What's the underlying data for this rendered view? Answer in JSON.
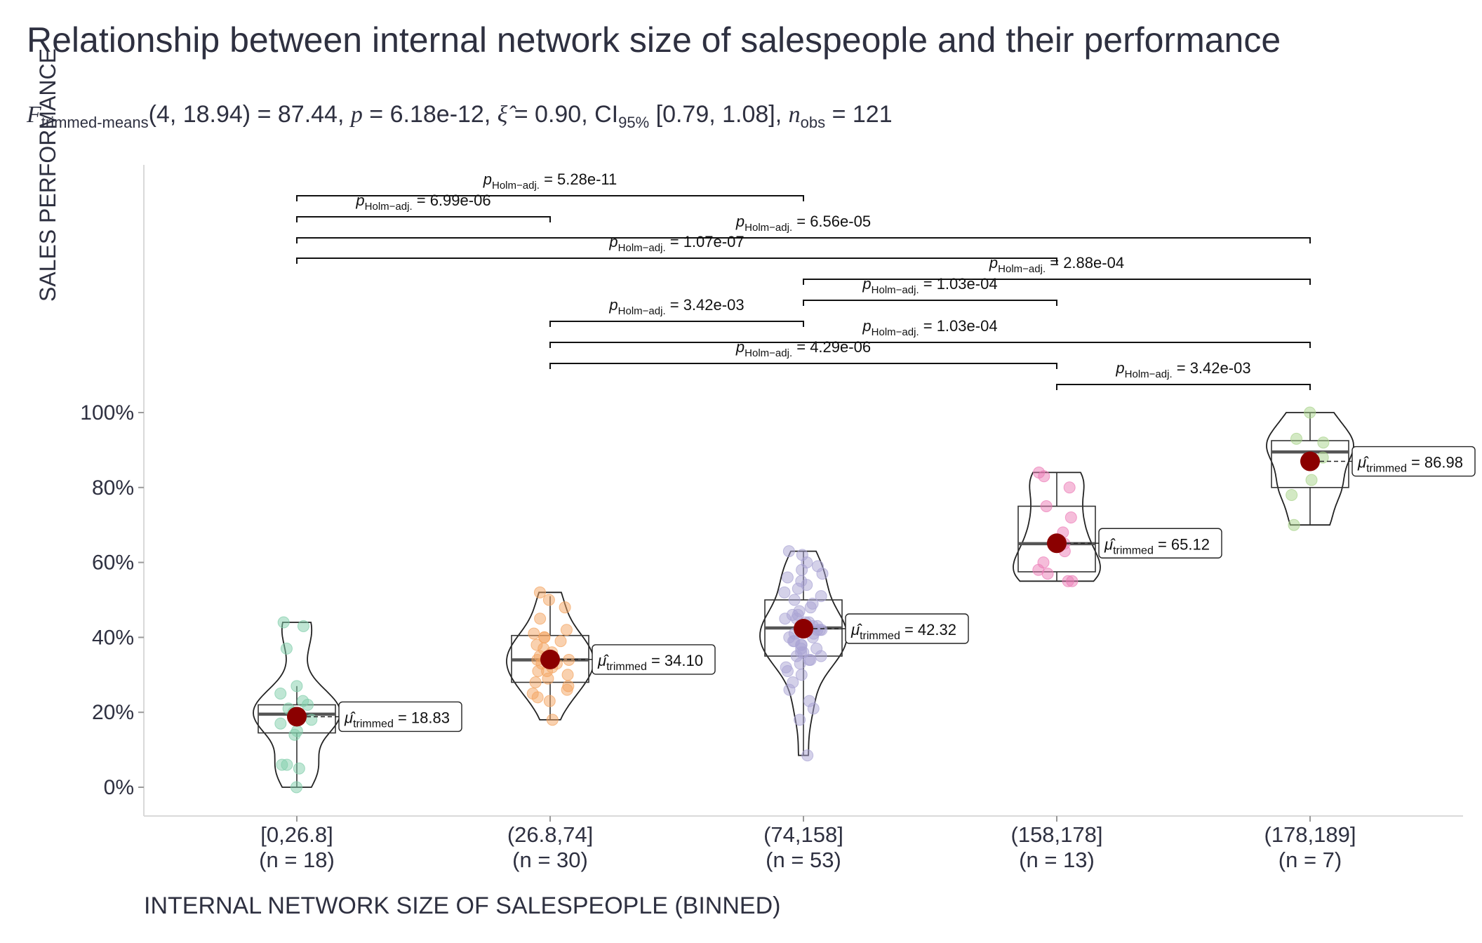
{
  "title": "Relationship between internal network size of salespeople and their performance",
  "subtitle": {
    "stat_symbol": "F",
    "stat_sub": "trimmed-means",
    "stat_args": "(4, 18.94)",
    "stat_value": " = 87.44, ",
    "p_symbol": "p",
    "p_value": " = 6.18e-12, ",
    "effect_symbol": "ξ̂",
    "effect_value": " = 0.90, CI",
    "ci_sub": "95%",
    "ci_value": " [0.79, 1.08], ",
    "n_symbol": "n",
    "n_sub": "obs",
    "n_value": " = 121"
  },
  "colors": {
    "text": "#2e3040",
    "axis": "#d9d9d9",
    "mean_point": "#8b0000",
    "groups": [
      "#7fcdaa",
      "#f4a460",
      "#a9a4d4",
      "#ec7bb6",
      "#a8d38a"
    ]
  },
  "chart_data": {
    "type": "violin-box",
    "title": "Relationship between internal network size of salespeople and their performance",
    "xlabel": "INTERNAL NETWORK SIZE OF SALESPEOPLE (BINNED)",
    "ylabel": "SALES PERFORMANCE",
    "ylim": [
      0,
      100
    ],
    "yticks": [
      "0%",
      "20%",
      "40%",
      "60%",
      "80%",
      "100%"
    ],
    "ytick_values": [
      0,
      20,
      40,
      60,
      80,
      100
    ],
    "grid": false,
    "categories": [
      "[0,26.8]",
      "(26.8,74]",
      "(74,158]",
      "(158,178]",
      "(178,189]"
    ],
    "group_n": [
      "(n = 18)",
      "(n = 30)",
      "(n = 53)",
      "(n = 13)",
      "(n = 7)"
    ],
    "groups": [
      {
        "label": "[0,26.8]",
        "trimmed_mean": 18.83,
        "mean_label": "18.83",
        "box": {
          "q1": 14.5,
          "median": 19.5,
          "q3": 22,
          "whisker_low": 0,
          "whisker_high": 27
        },
        "range": [
          0,
          44
        ],
        "points": [
          0,
          5,
          6,
          6,
          14,
          15,
          17,
          18,
          19,
          20,
          21,
          22,
          23,
          25,
          27,
          37,
          43,
          44
        ]
      },
      {
        "label": "(26.8,74]",
        "trimmed_mean": 34.1,
        "mean_label": "34.10",
        "box": {
          "q1": 28,
          "median": 34,
          "q3": 40.5,
          "whisker_low": 18,
          "whisker_high": 51
        },
        "range": [
          18,
          52
        ],
        "points": [
          18,
          23,
          24,
          25,
          26,
          27,
          28,
          29,
          30,
          31,
          31,
          32,
          33,
          33,
          34,
          34,
          35,
          35,
          36,
          37,
          38,
          39,
          40,
          40,
          41,
          42,
          45,
          48,
          50,
          52
        ]
      },
      {
        "label": "(74,158]",
        "trimmed_mean": 42.32,
        "mean_label": "42.32",
        "box": {
          "q1": 35,
          "median": 42.5,
          "q3": 50,
          "whisker_low": 8.5,
          "whisker_high": 63
        },
        "range": [
          8.5,
          63
        ],
        "points": [
          8.5,
          18,
          21,
          23,
          26,
          28,
          30,
          31,
          32,
          33,
          34,
          34,
          35,
          35,
          36,
          36,
          37,
          37,
          38,
          38,
          39,
          39,
          40,
          40,
          41,
          41,
          42,
          42,
          42,
          43,
          43,
          44,
          44,
          45,
          45,
          46,
          46,
          47,
          48,
          49,
          50,
          51,
          52,
          53,
          54,
          55,
          56,
          57,
          58,
          59,
          60,
          62,
          63
        ]
      },
      {
        "label": "(158,178]",
        "trimmed_mean": 65.12,
        "mean_label": "65.12",
        "box": {
          "q1": 57.5,
          "median": 65,
          "q3": 75,
          "whisker_low": 55,
          "whisker_high": 84
        },
        "range": [
          55,
          84
        ],
        "points": [
          55,
          55,
          57,
          58,
          60,
          63,
          65,
          68,
          72,
          75,
          80,
          83,
          84
        ]
      },
      {
        "label": "(178,189]",
        "trimmed_mean": 86.98,
        "mean_label": "86.98",
        "box": {
          "q1": 80,
          "median": 89.5,
          "q3": 92.5,
          "whisker_low": 70,
          "whisker_high": 100
        },
        "range": [
          70,
          100
        ],
        "points": [
          70,
          78,
          82,
          88,
          92,
          93,
          100
        ]
      }
    ],
    "mean_label_prefix": "μ̂",
    "mean_label_sub": "trimmed",
    "mean_label_eq": " = ",
    "pairwise_label_symbol": "p",
    "pairwise_label_sub": "Holm−adj.",
    "pairwise": [
      {
        "from": 0,
        "to": 2,
        "p": "5.28e-11"
      },
      {
        "from": 0,
        "to": 1,
        "p": "6.99e-06"
      },
      {
        "from": 0,
        "to": 4,
        "p": "6.56e-05"
      },
      {
        "from": 0,
        "to": 3,
        "p": "1.07e-07"
      },
      {
        "from": 2,
        "to": 4,
        "p": "2.88e-04"
      },
      {
        "from": 2,
        "to": 3,
        "p": "1.03e-04"
      },
      {
        "from": 1,
        "to": 2,
        "p": "3.42e-03"
      },
      {
        "from": 1,
        "to": 4,
        "p": "1.03e-04"
      },
      {
        "from": 1,
        "to": 3,
        "p": "4.29e-06"
      },
      {
        "from": 3,
        "to": 4,
        "p": "3.42e-03"
      }
    ]
  }
}
